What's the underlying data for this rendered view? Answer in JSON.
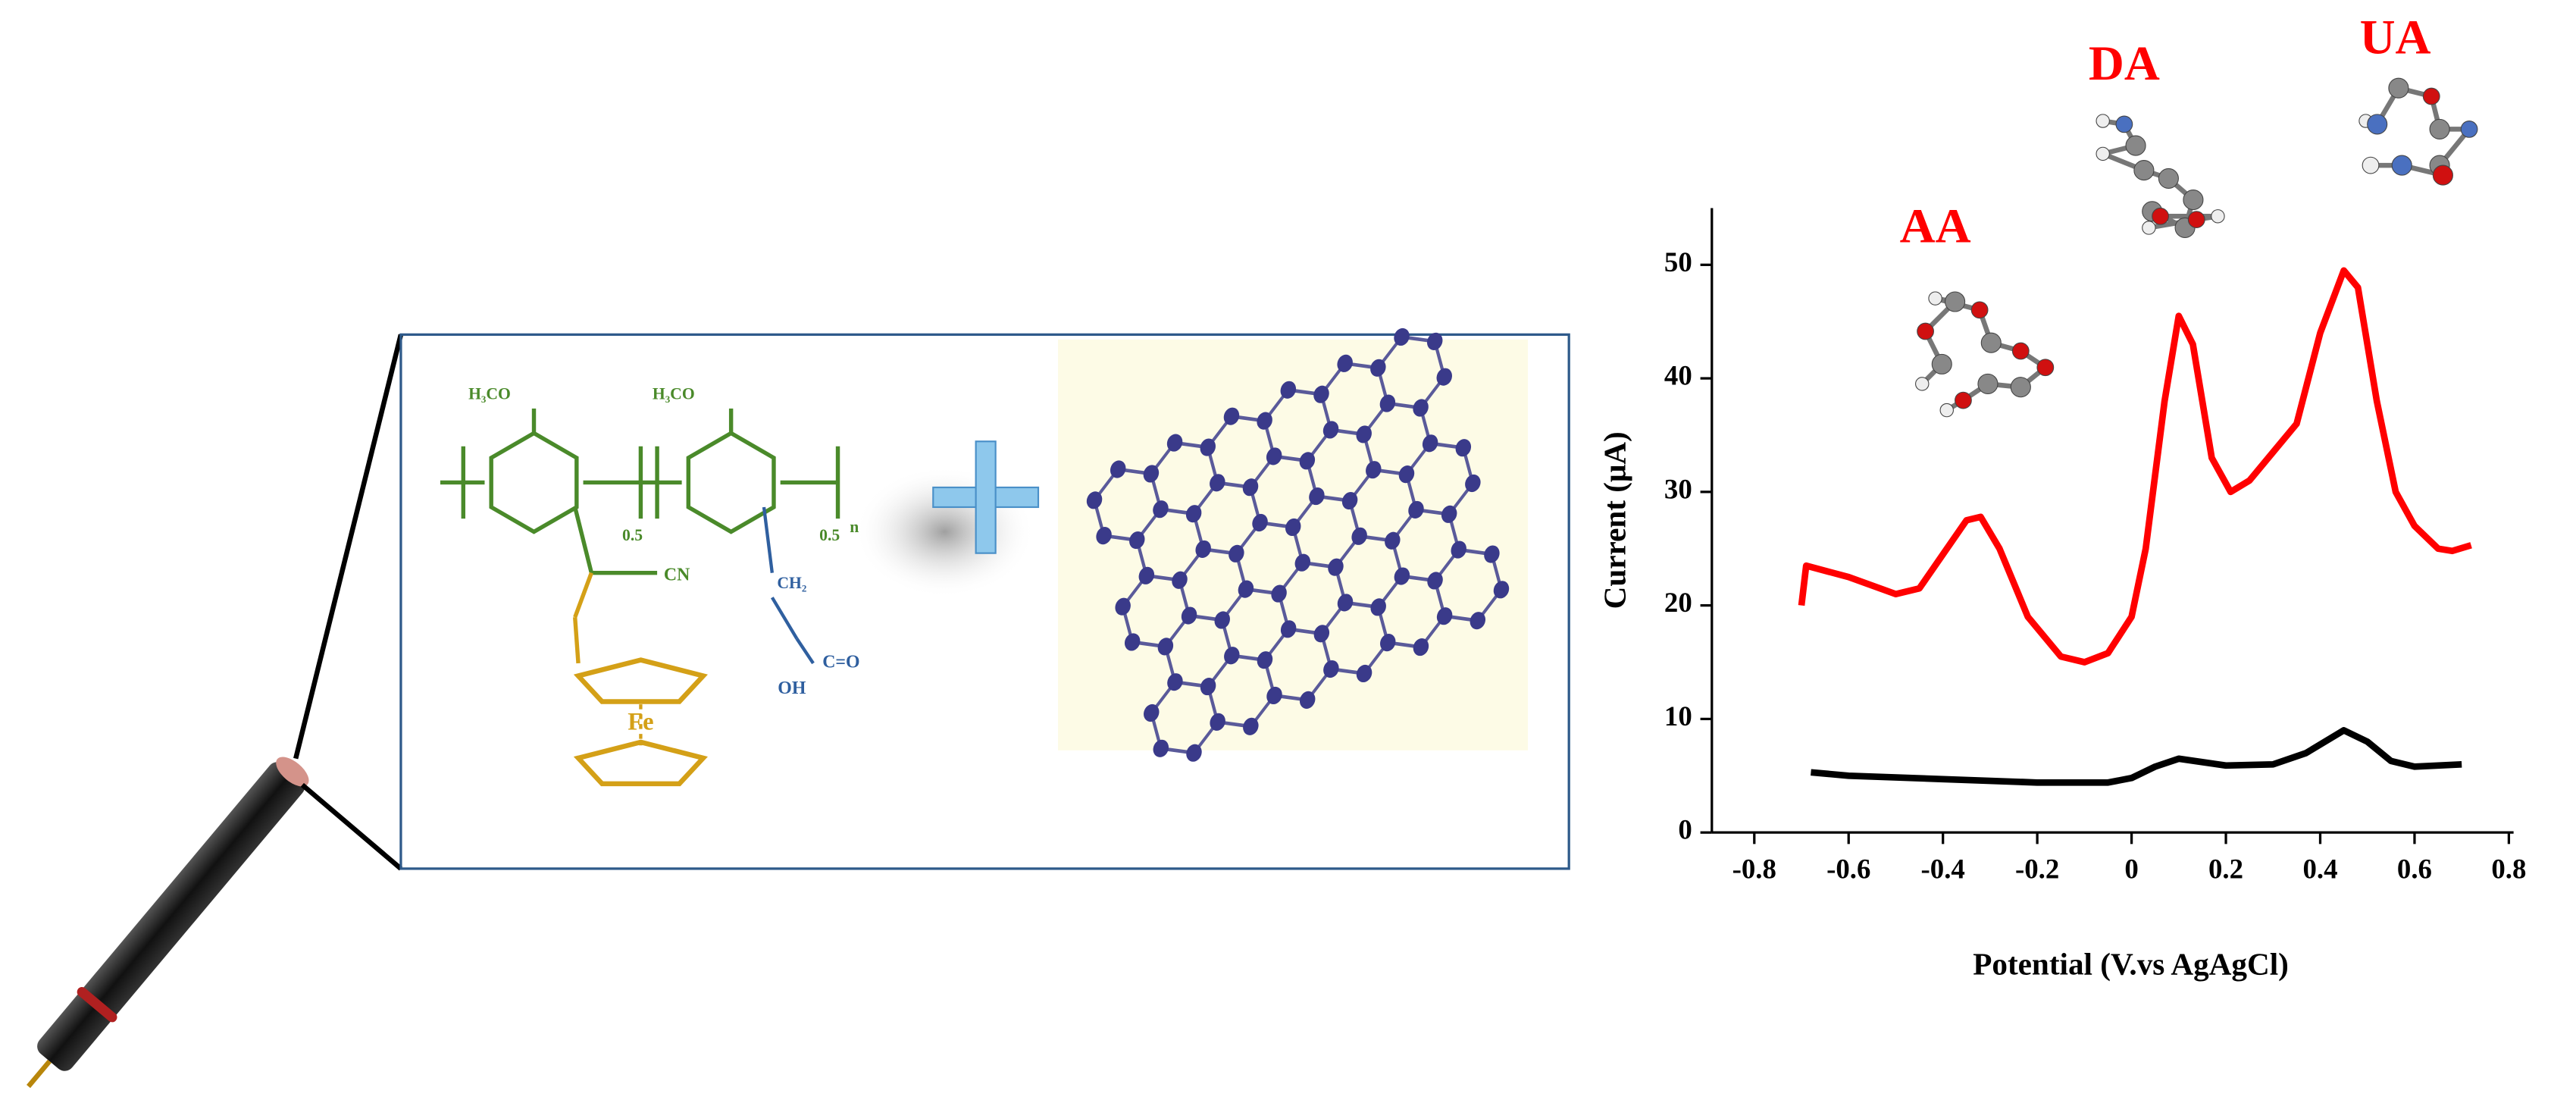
{
  "chart_data": {
    "type": "line",
    "xlabel": "Potential (V.vs AgAgCl)",
    "ylabel": "Current (μA)",
    "annotations": [
      "AA",
      "DA",
      "UA"
    ],
    "xlim": [
      -0.89,
      0.81
    ],
    "ylim": [
      0,
      55
    ],
    "xticks": [
      -0.8,
      -0.6,
      -0.4,
      -0.2,
      0.0,
      0.2,
      0.4,
      0.6,
      0.8
    ],
    "yticks": [
      0,
      10,
      20,
      30,
      40,
      50
    ],
    "series": [
      {
        "color": "#ff0000",
        "x": [
          -0.7,
          -0.69,
          -0.6,
          -0.5,
          -0.45,
          -0.4,
          -0.35,
          -0.32,
          -0.28,
          -0.22,
          -0.15,
          -0.1,
          -0.05,
          0.0,
          0.03,
          0.07,
          0.1,
          0.13,
          0.17,
          0.21,
          0.25,
          0.3,
          0.35,
          0.4,
          0.45,
          0.48,
          0.52,
          0.56,
          0.6,
          0.65,
          0.68,
          0.72
        ],
        "values": [
          20,
          23.5,
          22.5,
          21,
          21.5,
          24.5,
          27.5,
          27.8,
          25,
          19,
          15.5,
          15,
          15.8,
          19,
          25,
          38,
          45.5,
          43,
          33,
          30,
          31,
          33.5,
          36,
          44,
          49.5,
          48,
          38,
          30,
          27,
          25,
          24.8,
          25.3
        ]
      },
      {
        "color": "#000000",
        "x": [
          -0.68,
          -0.6,
          -0.4,
          -0.2,
          -0.05,
          0.0,
          0.05,
          0.1,
          0.15,
          0.2,
          0.3,
          0.37,
          0.45,
          0.5,
          0.55,
          0.6,
          0.7
        ],
        "values": [
          5.3,
          5,
          4.7,
          4.4,
          4.4,
          4.8,
          5.8,
          6.5,
          6.2,
          5.9,
          6,
          7,
          9,
          8,
          6.3,
          5.8,
          6
        ]
      }
    ]
  },
  "structure": {
    "labels": [
      "H₃CO",
      "H₃CO",
      "0.5",
      "0.5",
      "n",
      "CN",
      "Fe",
      "CH₂",
      "C=O",
      "OH"
    ]
  }
}
